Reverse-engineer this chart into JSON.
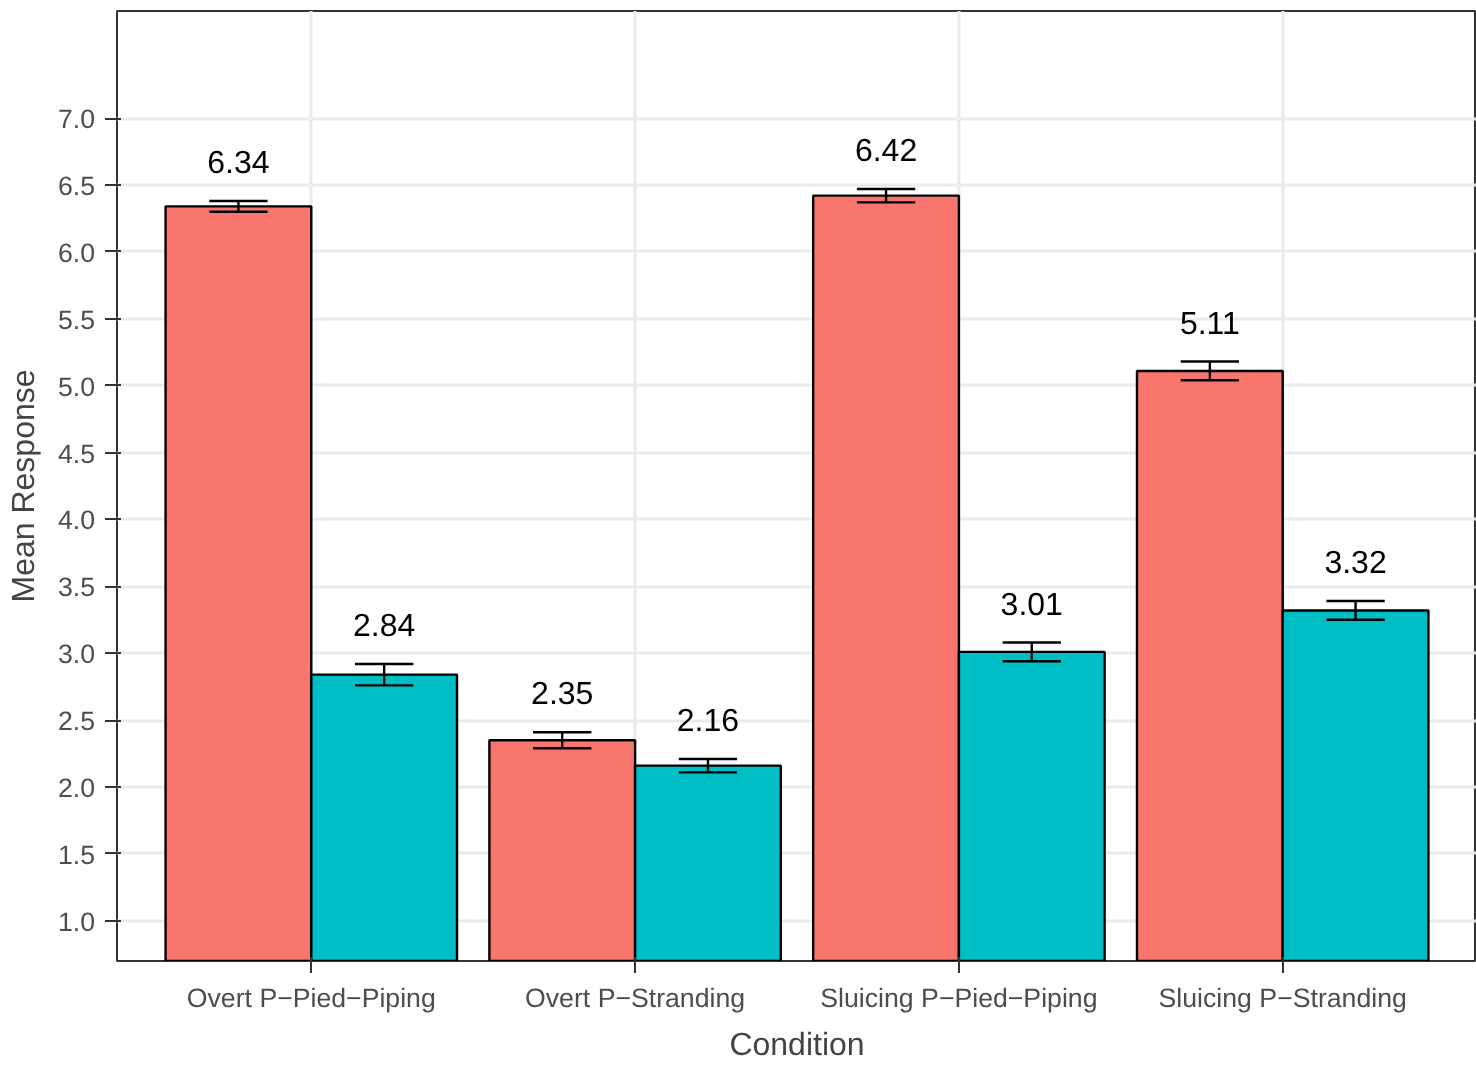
{
  "chart_data": {
    "type": "bar",
    "xlabel": "Condition",
    "ylabel": "Mean Response",
    "categories": [
      "Overt P−Pied−Piping",
      "Overt P−Stranding",
      "Sluicing P−Pied−Piping",
      "Sluicing P−Stranding"
    ],
    "series": [
      {
        "color": "#f8766d",
        "values": [
          6.34,
          2.35,
          6.42,
          5.11
        ],
        "errors": [
          0.04,
          0.06,
          0.05,
          0.07
        ]
      },
      {
        "color": "#00bfc4",
        "values": [
          2.84,
          2.16,
          3.01,
          3.32
        ],
        "errors": [
          0.08,
          0.05,
          0.07,
          0.07
        ]
      }
    ],
    "ylim": [
      0.7,
      7.8
    ],
    "yticks": [
      {
        "value": 1,
        "label": "1.0"
      },
      1.5,
      {
        "value": 2,
        "label": "2.0"
      },
      2.5,
      {
        "value": 3,
        "label": "3.0"
      },
      3.5,
      {
        "value": 4,
        "label": "4.0"
      },
      4.5,
      {
        "value": 5,
        "label": "5.0"
      },
      5.5,
      {
        "value": 6,
        "label": "6.0"
      },
      6.5,
      {
        "value": 7,
        "label": "7.0"
      }
    ],
    "grid": true,
    "data_labels": true
  }
}
